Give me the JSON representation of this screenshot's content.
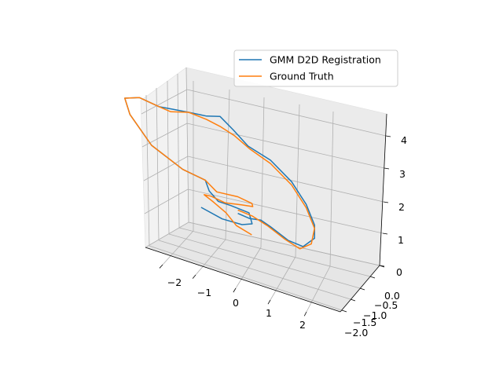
{
  "chart_data": {
    "type": "line",
    "projection": "3d",
    "grid": true,
    "legend_position": "top-right",
    "x_ticks": [
      "−2",
      "−1",
      "0",
      "1",
      "2"
    ],
    "y_ticks": [
      "0.0",
      "−0.5",
      "−1.0",
      "−1.5",
      "−2.0"
    ],
    "z_ticks": [
      "0",
      "1",
      "2",
      "3",
      "4"
    ],
    "xlim": [
      -2.7,
      2.7
    ],
    "ylim": [
      -2.2,
      0.2
    ],
    "zlim": [
      0,
      4.6
    ],
    "series": [
      {
        "name": "GMM D2D Registration",
        "color": "#1f77b4",
        "points": [
          [
            -0.2,
            -1.5,
            1.0
          ],
          [
            0.4,
            -1.4,
            0.9
          ],
          [
            0.9,
            -1.2,
            1.0
          ],
          [
            1.1,
            -1.0,
            1.2
          ],
          [
            1.0,
            -1.0,
            1.5
          ],
          [
            0.5,
            -1.1,
            1.5
          ],
          [
            0.1,
            -1.1,
            1.5
          ],
          [
            -0.3,
            -0.9,
            1.8
          ],
          [
            -0.6,
            -0.6,
            2.2
          ],
          [
            -1.3,
            -0.6,
            2.3
          ],
          [
            -2.1,
            -0.9,
            2.6
          ],
          [
            -2.6,
            -1.2,
            3.2
          ],
          [
            -2.7,
            -1.3,
            3.6
          ],
          [
            -2.3,
            -1.2,
            3.8
          ],
          [
            -1.8,
            -1.0,
            3.8
          ],
          [
            -1.4,
            -0.9,
            3.9
          ],
          [
            -1.0,
            -0.8,
            4.0
          ],
          [
            -0.5,
            -0.7,
            4.1
          ],
          [
            -0.2,
            -0.5,
            4.3
          ],
          [
            0.1,
            -0.3,
            4.1
          ],
          [
            0.5,
            -0.2,
            3.8
          ],
          [
            1.2,
            -0.2,
            3.6
          ],
          [
            1.8,
            -0.1,
            3.2
          ],
          [
            2.2,
            0.0,
            2.7
          ],
          [
            2.4,
            0.1,
            2.2
          ],
          [
            2.4,
            0.1,
            1.8
          ],
          [
            2.1,
            0.0,
            1.4
          ],
          [
            1.7,
            -0.1,
            1.4
          ],
          [
            1.2,
            -0.2,
            1.6
          ],
          [
            0.9,
            -0.2,
            1.7
          ],
          [
            0.6,
            -0.3,
            1.6
          ],
          [
            0.3,
            -0.4,
            1.6
          ]
        ]
      },
      {
        "name": "Ground Truth",
        "color": "#ff7f0e",
        "points": [
          [
            1.5,
            -1.7,
            0.6
          ],
          [
            0.9,
            -1.5,
            0.8
          ],
          [
            0.4,
            -1.2,
            1.2
          ],
          [
            0.0,
            -1.2,
            1.4
          ],
          [
            -0.4,
            -1.0,
            1.6
          ],
          [
            -0.3,
            -0.8,
            1.7
          ],
          [
            0.2,
            -0.9,
            1.6
          ],
          [
            0.7,
            -0.9,
            1.7
          ],
          [
            1.0,
            -0.8,
            1.8
          ],
          [
            0.8,
            -0.5,
            2.0
          ],
          [
            0.3,
            -0.4,
            2.1
          ],
          [
            -0.3,
            -0.5,
            2.0
          ],
          [
            -0.6,
            -0.6,
            2.2
          ],
          [
            -1.3,
            -0.6,
            2.3
          ],
          [
            -2.1,
            -0.9,
            2.6
          ],
          [
            -2.6,
            -1.2,
            3.2
          ],
          [
            -2.7,
            -1.3,
            3.6
          ],
          [
            -2.3,
            -1.2,
            3.8
          ],
          [
            -1.8,
            -1.0,
            3.8
          ],
          [
            -1.5,
            -0.9,
            3.8
          ],
          [
            -1.0,
            -0.8,
            4.0
          ],
          [
            -0.5,
            -0.7,
            4.0
          ],
          [
            -0.2,
            -0.5,
            4.0
          ],
          [
            0.2,
            -0.4,
            3.9
          ],
          [
            0.6,
            -0.3,
            3.7
          ],
          [
            1.2,
            -0.2,
            3.5
          ],
          [
            1.8,
            -0.1,
            3.1
          ],
          [
            2.2,
            0.0,
            2.6
          ],
          [
            2.4,
            0.1,
            2.1
          ],
          [
            2.3,
            0.1,
            1.6
          ],
          [
            2.0,
            0.0,
            1.3
          ],
          [
            1.6,
            -0.1,
            1.4
          ],
          [
            1.1,
            -0.2,
            1.6
          ],
          [
            0.7,
            -0.3,
            1.7
          ],
          [
            0.3,
            -0.4,
            1.7
          ]
        ]
      }
    ]
  }
}
